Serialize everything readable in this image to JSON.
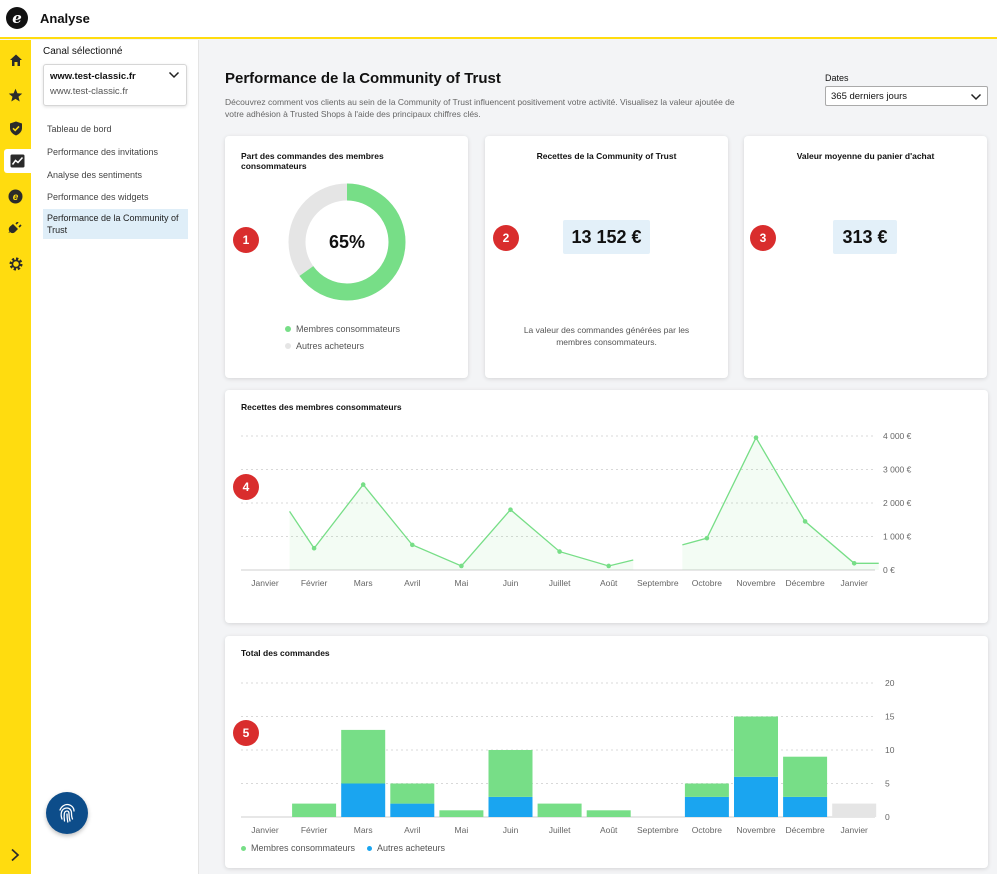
{
  "app": {
    "title": "Analyse"
  },
  "sidebar": {
    "channel_label": "Canal sélectionné",
    "channel_main": "www.test-classic.fr",
    "channel_sub": "www.test-classic.fr",
    "items": [
      {
        "label": "Tableau de bord"
      },
      {
        "label": "Performance des invitations"
      },
      {
        "label": "Analyse des sentiments"
      },
      {
        "label": "Performance des widgets"
      },
      {
        "label": "Performance de la Community of Trust"
      }
    ]
  },
  "rail": {
    "icons": [
      "home-icon",
      "star-icon",
      "shield-check-icon",
      "analytics-icon",
      "e-circle-icon",
      "plug-icon",
      "gear-icon"
    ]
  },
  "header": {
    "title": "Performance de la Community of Trust",
    "description": "Découvrez comment vos clients au sein de la Community of Trust influencent positivement votre activité. Visualisez la valeur ajoutée de votre adhésion à Trusted Shops à l'aide des principaux chiffres clés.",
    "dates_label": "Dates",
    "dates_value": "365 derniers jours"
  },
  "cards": {
    "share": {
      "title": "Part des commandes des membres consommateurs",
      "value": "65%",
      "percent": 65,
      "badge": "1",
      "legend": [
        "Membres consommateurs",
        "Autres acheteurs"
      ]
    },
    "revenue": {
      "title": "Recettes de la Community of Trust",
      "value": "13 152 €",
      "badge": "2",
      "note": "La valeur des commandes générées par les membres consommateurs."
    },
    "basket": {
      "title": "Valeur moyenne du panier d'achat",
      "value": "313 €",
      "badge": "3"
    },
    "line": {
      "title": "Recettes des membres consommateurs",
      "badge": "4"
    },
    "bars": {
      "title": "Total des commandes",
      "badge": "5",
      "legend": [
        "Membres consommateurs",
        "Autres acheteurs"
      ]
    }
  },
  "colors": {
    "green": "#77de87",
    "blue": "#1aa5f0",
    "grey": "#e5e5e5",
    "yellow": "#ffdc0f",
    "red": "#d92d2d"
  },
  "chart_data": [
    {
      "type": "line",
      "title": "Recettes des membres consommateurs",
      "categories": [
        "Janvier",
        "Février",
        "Mars",
        "Avril",
        "Mai",
        "Juin",
        "Juillet",
        "Août",
        "Septembre",
        "Octobre",
        "Novembre",
        "Décembre",
        "Janvier"
      ],
      "yticks": [
        "4 000 €",
        "3 000 €",
        "2 000 €",
        "1 000 €",
        "0 €"
      ],
      "ylim": [
        0,
        4000
      ],
      "segments": [
        [
          [
            0.5,
            1750
          ],
          [
            1,
            650
          ],
          [
            2,
            2550
          ],
          [
            3,
            750
          ],
          [
            4,
            120
          ],
          [
            5,
            1800
          ],
          [
            6,
            550
          ],
          [
            7,
            120
          ],
          [
            7.5,
            300
          ]
        ],
        [
          [
            8.5,
            750
          ],
          [
            9,
            950
          ],
          [
            10,
            3950
          ],
          [
            11,
            1450
          ],
          [
            12,
            200
          ],
          [
            12.5,
            200
          ]
        ]
      ]
    },
    {
      "type": "bar",
      "title": "Total des commandes",
      "categories": [
        "Janvier",
        "Février",
        "Mars",
        "Avril",
        "Mai",
        "Juin",
        "Juillet",
        "Août",
        "Septembre",
        "Octobre",
        "Novembre",
        "Décembre",
        "Janvier"
      ],
      "yticks": [
        "20",
        "15",
        "10",
        "5",
        "0"
      ],
      "ylim": [
        0,
        20
      ],
      "series": [
        {
          "name": "Autres acheteurs",
          "values": [
            0,
            0,
            5,
            2,
            0,
            3,
            0,
            0,
            0,
            3,
            6,
            3,
            0
          ]
        },
        {
          "name": "Membres consommateurs",
          "values": [
            0,
            2,
            8,
            3,
            1,
            7,
            2,
            1,
            0,
            2,
            9,
            6,
            0
          ]
        }
      ],
      "pending": [
        0,
        0,
        0,
        0,
        0,
        0,
        0,
        0,
        0,
        0,
        0,
        0,
        2
      ]
    }
  ]
}
